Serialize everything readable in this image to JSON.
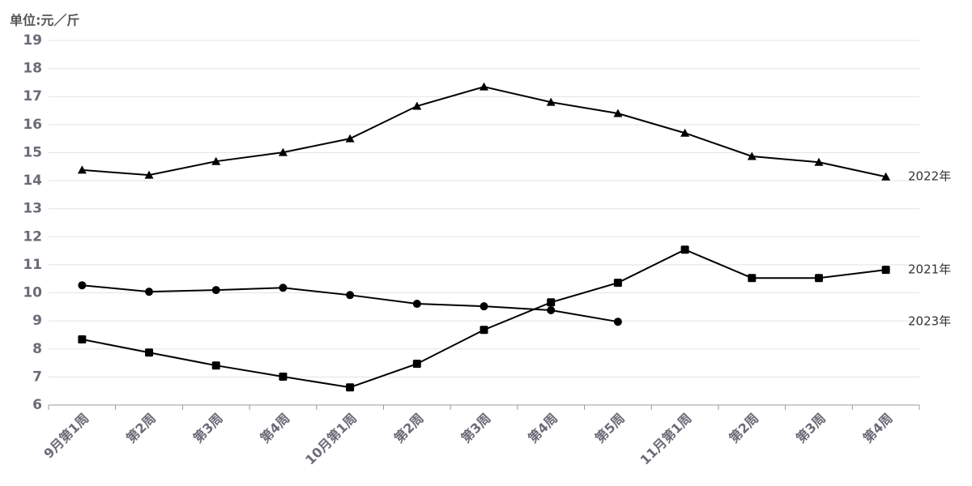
{
  "chart_data": {
    "type": "line",
    "y_label": "单位:元／斤",
    "categories": [
      "9月第1周",
      "第2周",
      "第3周",
      "第4周",
      "10月第1周",
      "第2周",
      "第3周",
      "第4周",
      "第5周",
      "11月第1周",
      "第2周",
      "第3周",
      "第4周"
    ],
    "series": [
      {
        "name": "2022年",
        "color": "#000000",
        "marker": "triangle",
        "values": [
          14.38,
          14.2,
          14.69,
          15.01,
          15.5,
          16.66,
          17.35,
          16.8,
          16.4,
          15.7,
          14.87,
          14.66,
          14.14
        ]
      },
      {
        "name": "2021年",
        "color": "#000000",
        "marker": "square",
        "values": [
          8.34,
          7.87,
          7.41,
          7.01,
          6.63,
          7.47,
          8.68,
          9.66,
          10.36,
          11.54,
          10.53,
          10.53,
          10.82
        ]
      },
      {
        "name": "2023年",
        "color": "#000000",
        "marker": "circle",
        "values": [
          10.27,
          10.04,
          10.1,
          10.18,
          9.92,
          9.61,
          9.52,
          9.38,
          8.97,
          null,
          null,
          null,
          null
        ]
      }
    ],
    "ylim": [
      6,
      19
    ],
    "yticks": [
      6,
      7,
      8,
      9,
      10,
      11,
      12,
      13,
      14,
      15,
      16,
      17,
      18,
      19
    ],
    "grid": true
  }
}
